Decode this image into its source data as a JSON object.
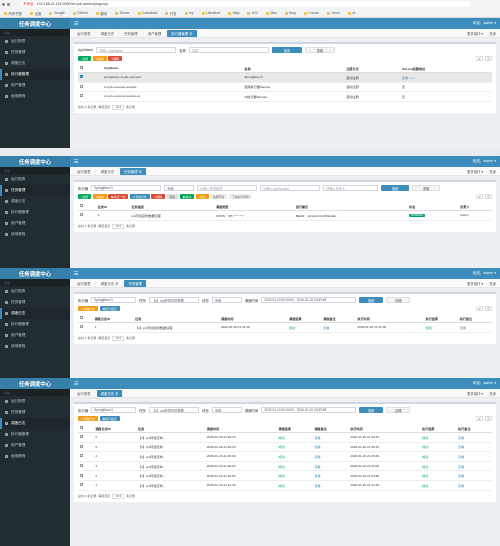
{
  "browser": {
    "security": "不安全",
    "url": "192.168.31.116:9080/xxl-job-admin/jobgroup",
    "bookmarks": [
      "所有书签",
      "百度",
      "Google",
      "GitHub",
      "翻译",
      "Server",
      "Download",
      "开发",
      "my",
      "Literature",
      "Map",
      "AGI",
      "Mac",
      "blog",
      "Course",
      "Linux",
      "AI"
    ]
  },
  "app": {
    "brand": "任务调度中心",
    "welcome": "欢迎，admin ▾",
    "menu_icon": "☰",
    "nav_header": "导航",
    "nav": [
      "运行报表",
      "任务管理",
      "调度日志",
      "执行器管理",
      "用户管理",
      "使用教程"
    ],
    "tab_right": [
      "更多操作 ▾",
      "关闭"
    ]
  },
  "s1": {
    "tabs": [
      "运行报表",
      "调度日志",
      "任务管理",
      "用户管理",
      "执行器管理 ⊗"
    ],
    "filters": {
      "appname_label": "AppName",
      "appname_ph": "请输入AppName",
      "title_label": "名称",
      "title_ph": "名称",
      "search": "搜索",
      "reset": "重置"
    },
    "actions": [
      "+新增",
      "✎编辑",
      "✕删除"
    ],
    "cols": [
      "AppName",
      "名称",
      "注册方式",
      "OnLine机器地址"
    ],
    "rows": [
      [
        "springboot-xxl-job-executor",
        "SpringBoot-X",
        "自动注册",
        "查看 ( 1 )"
      ],
      [
        "xxl-job-executor-sample",
        "通用执行器Sample",
        "自动注册",
        "无"
      ],
      [
        "xxl-job-executor-sample-ai",
        "AI执行器Sample",
        "自动注册",
        "无"
      ]
    ],
    "pager": {
      "total": "总共 3 条记录",
      "per": "每页显示",
      "size": "10 ▾",
      "unit": "条记录"
    }
  },
  "s2": {
    "tabs": [
      "运行报表",
      "调度日志",
      "任务管理 ⊗"
    ],
    "filters": {
      "executor_label": "执行器",
      "executor": "SpringBoot-X",
      "status": "全部",
      "desc_ph": "请输入任务描述",
      "handler_ph": "请输入JobHandler",
      "author_ph": "请输入负责人",
      "search": "搜索",
      "reset": "重置"
    },
    "actions": [
      "+新增",
      "✎编辑",
      "▶执行一次",
      "⊘查询日志",
      "✕删除",
      "更多",
      "▶启动",
      "⏸停止",
      "注册节点",
      "下次执行时间"
    ],
    "cols": [
      "任务ID",
      "任务描述",
      "调度类型",
      "运行模式",
      "状态",
      "负责人"
    ],
    "rows": [
      [
        "4",
        "prd环境定时数据清理",
        "CRON：0/5 * * * * ?",
        "BEAN：simpleXxlJobHandler",
        "RUNNING",
        "Kaixin"
      ]
    ],
    "pager": {
      "total": "总共 1 条记录",
      "per": "每页显示",
      "size": "10 ▾",
      "unit": "条记录"
    }
  },
  "s3": {
    "tabs": [
      "运行报表",
      "调度日志 ⊗",
      "任务管理"
    ],
    "filters": {
      "executor_label": "执行器",
      "executor": "SpringBoot-X",
      "task_label": "任务",
      "task": "【4】prd环境定时数据",
      "status_label": "状态",
      "status": "全部",
      "time_label": "调度时间",
      "time": "2026-01-19 00:00:00 - 2026-01-26 23:59:59",
      "search": "搜索",
      "reset": "清理"
    },
    "actions": [
      "⊘清理日志",
      "◉运行报表"
    ],
    "cols": [
      "调度日志ID",
      "任务",
      "调度时间",
      "调度结果",
      "调度备注",
      "执行时间",
      "执行结果",
      "执行备注"
    ],
    "rows": [
      [
        "1",
        "【4】prd环境定时数据清理",
        "2026-01-26 21:41:39",
        "成功",
        "查看",
        "2026-01-26 21:41:39",
        "成功",
        "查看"
      ]
    ],
    "pager": {
      "total": "总共 1 条记录",
      "per": "每页显示",
      "size": "10 ▾",
      "unit": "条记录"
    }
  },
  "s4": {
    "tabs": [
      "运行报表",
      "调度日志 ⊗"
    ],
    "filters": {
      "executor_label": "执行器",
      "executor": "SpringBoot-X",
      "task_label": "任务",
      "task": "【4】prd环境定时数据",
      "status_label": "状态",
      "status": "全部",
      "time_label": "调度时间",
      "time": "2026-01-19 00:00:00 - 2026-01-26 23:59:59",
      "search": "搜索",
      "reset": "清理"
    },
    "actions": [
      "⊘清理日志",
      "◉运行报表"
    ],
    "cols": [
      "调度日志ID",
      "任务",
      "调度时间",
      "调度结果",
      "调度备注",
      "执行时间",
      "执行结果",
      "执行备注"
    ],
    "rows": [
      [
        "6",
        "【4】prd环境定时...",
        "2026-01-26 21:49:15",
        "成功",
        "查看",
        "2026-01-26 21:49:15",
        "成功",
        "查看"
      ],
      [
        "5",
        "【4】prd环境定时...",
        "2026-01-26 21:46:15",
        "成功",
        "查看",
        "2026-01-26 21:46:15",
        "成功",
        "查看"
      ],
      [
        "4",
        "【4】prd环境定时...",
        "2026-01-26 21:45:09",
        "成功",
        "查看",
        "2026-01-26 21:45:09",
        "成功",
        "查看"
      ],
      [
        "3",
        "【4】prd环境定时...",
        "2026-01-26 21:45:00",
        "成功",
        "查看",
        "2026-01-26 21:45:00",
        "成功",
        "查看"
      ],
      [
        "2",
        "【4】prd环境定时...",
        "2026-01-26 21:44:55",
        "成功",
        "查看",
        "2026-01-26 21:44:55",
        "成功",
        "查看"
      ],
      [
        "1",
        "【4】prd环境定时...",
        "2026-01-26 21:41:39",
        "成功",
        "查看",
        "2026-01-26 21:41:39",
        "成功",
        "查看"
      ]
    ],
    "pager": {
      "total": "总共 6 条记录",
      "per": "每页显示",
      "size": "10 ▾",
      "unit": "条记录"
    }
  }
}
